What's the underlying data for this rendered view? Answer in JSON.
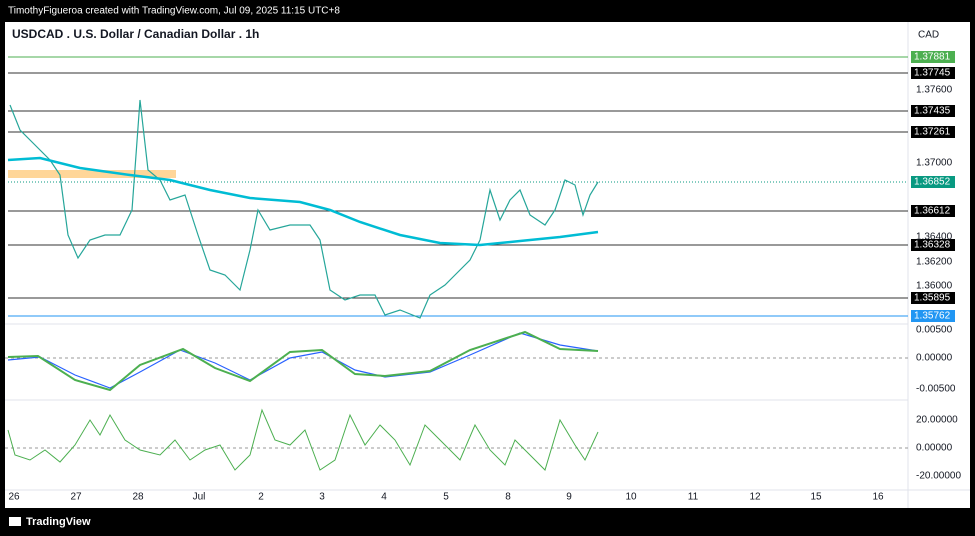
{
  "header": {
    "credit": "TimothyFigueroa created with TradingView.com, Jul 09, 2025 11:15 UTC+8"
  },
  "chart": {
    "title": "USDCAD . U.S. Dollar / Canadian Dollar . 1h",
    "currency": "CAD"
  },
  "price_axis": {
    "boxes": [
      {
        "label": "1.37881",
        "kind": "green"
      },
      {
        "label": "1.37745",
        "kind": "black"
      },
      {
        "label": "1.37435",
        "kind": "black"
      },
      {
        "label": "1.37261",
        "kind": "black"
      },
      {
        "label": "1.36852",
        "kind": "teal"
      },
      {
        "label": "1.36612",
        "kind": "black"
      },
      {
        "label": "1.36328",
        "kind": "black"
      },
      {
        "label": "1.35895",
        "kind": "black"
      },
      {
        "label": "1.35762",
        "kind": "blue"
      }
    ],
    "ticks": [
      "1.37600",
      "1.37000",
      "1.36400",
      "1.36200",
      "1.36000"
    ]
  },
  "macd_axis": {
    "ticks": [
      "0.00500",
      "0.00000",
      "-0.00500"
    ]
  },
  "osc_axis": {
    "ticks": [
      "20.00000",
      "0.00000",
      "-20.00000"
    ]
  },
  "time_axis": {
    "labels": [
      "26",
      "27",
      "28",
      "Jul",
      "2",
      "3",
      "4",
      "5",
      "8",
      "9",
      "10",
      "11",
      "12",
      "15",
      "16"
    ]
  },
  "footer": {
    "brand": "TradingView"
  }
}
